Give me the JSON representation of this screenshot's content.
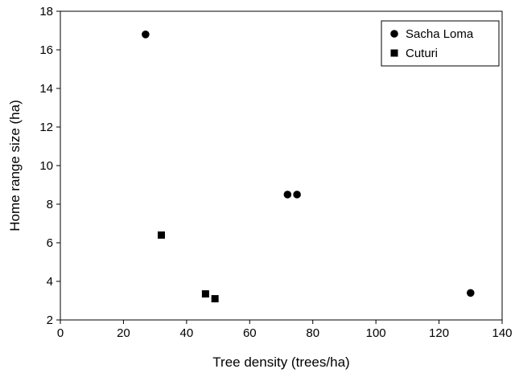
{
  "chart_data": {
    "type": "scatter",
    "title": "",
    "xlabel": "Tree density (trees/ha)",
    "ylabel": "Home range size (ha)",
    "xlim": [
      0,
      140
    ],
    "ylim": [
      2,
      18
    ],
    "xticks": [
      0,
      20,
      40,
      60,
      80,
      100,
      120,
      140
    ],
    "yticks": [
      2,
      4,
      6,
      8,
      10,
      12,
      14,
      16,
      18
    ],
    "grid": false,
    "legend_position": "top-right",
    "series": [
      {
        "name": "Sacha Loma",
        "marker": "circle",
        "color": "#000000",
        "points": [
          {
            "x": 27,
            "y": 16.8
          },
          {
            "x": 72,
            "y": 8.5
          },
          {
            "x": 75,
            "y": 8.5
          },
          {
            "x": 130,
            "y": 3.4
          }
        ]
      },
      {
        "name": "Cuturi",
        "marker": "square",
        "color": "#000000",
        "points": [
          {
            "x": 32,
            "y": 6.4
          },
          {
            "x": 46,
            "y": 3.35
          },
          {
            "x": 49,
            "y": 3.1
          }
        ]
      }
    ]
  }
}
